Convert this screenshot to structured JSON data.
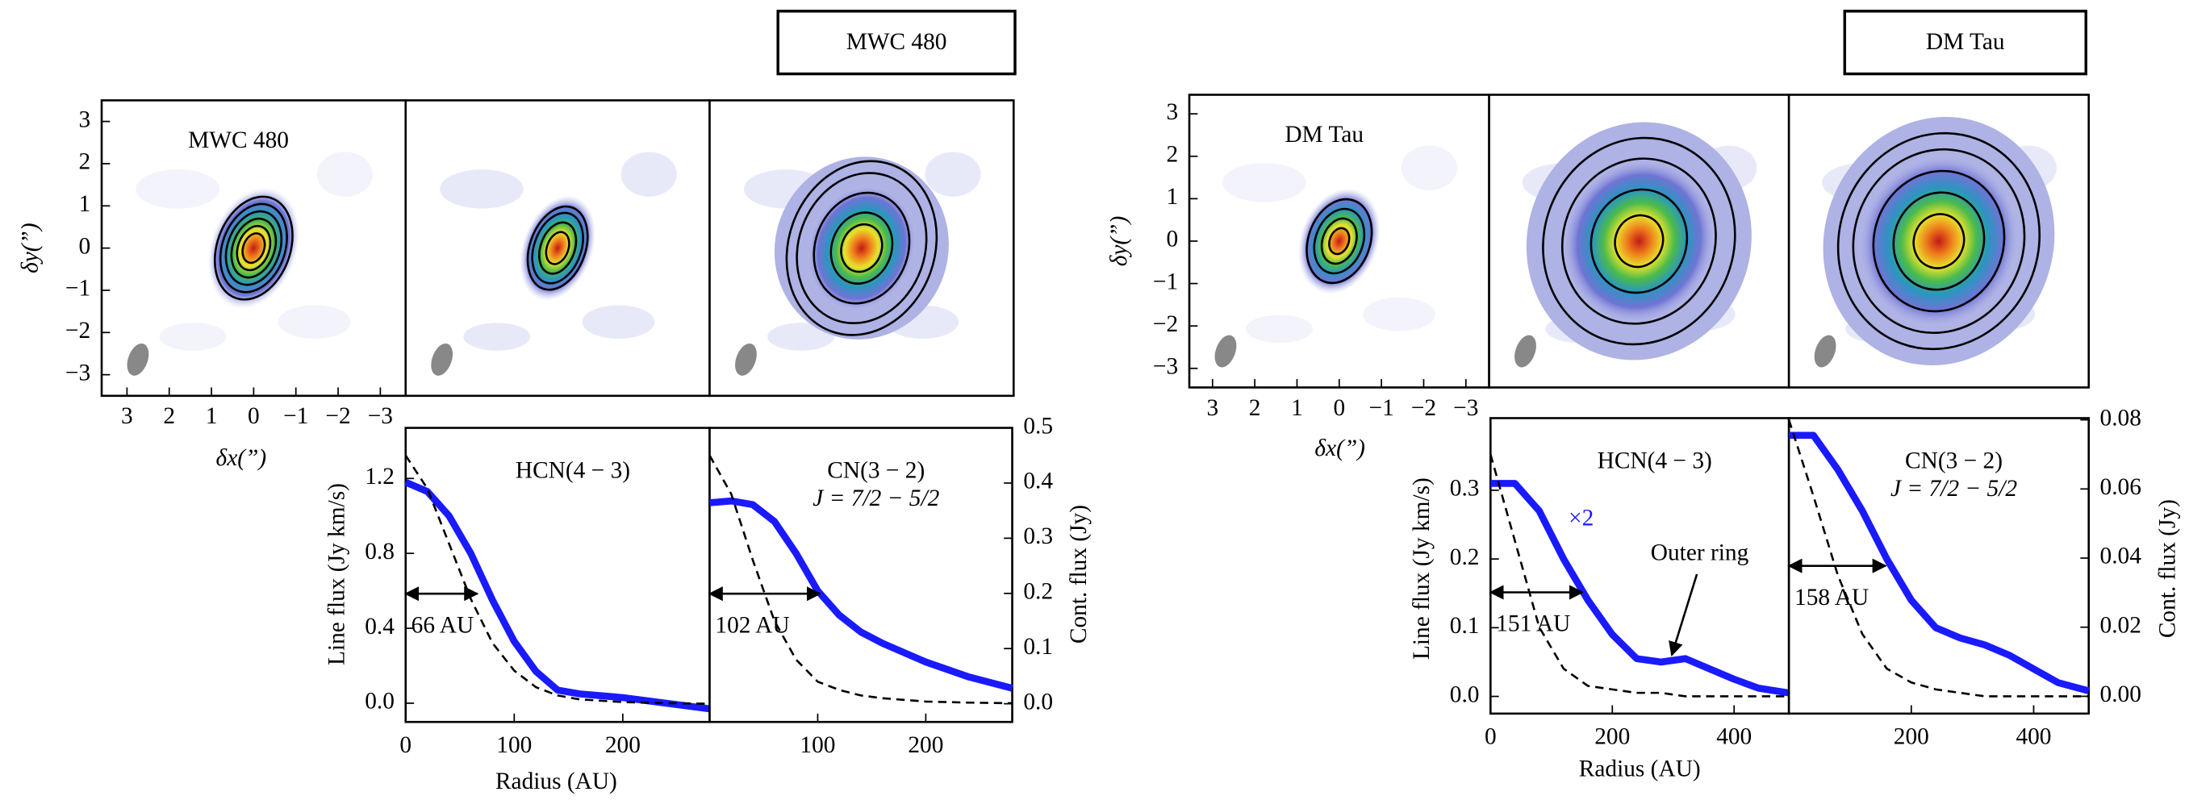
{
  "chart_data": [
    {
      "type": "map",
      "heading": "MWC 480",
      "label": "MWC 480",
      "xlabel": "δx(”)",
      "ylabel": "δy(”)",
      "xlim": [
        3.6,
        -3.6
      ],
      "ylim": [
        -3.5,
        3.5
      ],
      "xticks": [
        3,
        2,
        1,
        0,
        {
          "value": -1,
          "label": "−1"
        },
        {
          "value": -2,
          "label": "−2"
        },
        {
          "value": -3,
          "label": "−3"
        }
      ],
      "yticks": [
        3,
        2,
        1,
        0,
        {
          "value": -1,
          "label": "−1"
        },
        {
          "value": -2,
          "label": "−2"
        },
        {
          "value": -3,
          "label": "−3"
        }
      ]
    },
    {
      "type": "line",
      "title": "HCN(4 − 3)",
      "xlabel": "Radius (AU)",
      "ylabel": "Line flux (Jy km/s)",
      "xlim": [
        0,
        280
      ],
      "ylim": [
        -0.1,
        1.47
      ],
      "y2lim": [
        -0.033,
        0.5
      ],
      "xticks": [
        0,
        100,
        200
      ],
      "yticks": [
        {
          "value": 0,
          "label": "0.0"
        },
        0.4,
        0.8,
        1.2
      ],
      "x": [
        0,
        20,
        40,
        60,
        80,
        100,
        120,
        140,
        160,
        200,
        240,
        280
      ],
      "series": [
        {
          "color": "#1a1aff",
          "values": [
            1.18,
            1.13,
            1.0,
            0.8,
            0.55,
            0.33,
            0.17,
            0.07,
            0.05,
            0.03,
            0.0,
            -0.03
          ]
        },
        {
          "color": "#000000",
          "axis": "y2",
          "dashed": true,
          "values": [
            0.45,
            0.39,
            0.29,
            0.19,
            0.11,
            0.06,
            0.03,
            0.015,
            0.008,
            0.003,
            0.001,
            0
          ]
        }
      ],
      "arrow": {
        "value": 66,
        "label": "66 AU"
      }
    },
    {
      "type": "line",
      "title": "CN(3 − 2)",
      "subtitle": "J = 7/2 − 5/2",
      "y2label": "Cont. flux (Jy)",
      "xlim": [
        0,
        280
      ],
      "ylim": [
        -0.1,
        1.47
      ],
      "y2lim": [
        -0.033,
        0.5
      ],
      "xticks": [
        100,
        200
      ],
      "y2ticks": [
        {
          "value": 0,
          "label": "0.0"
        },
        0.1,
        0.2,
        0.3,
        0.4,
        0.5
      ],
      "x": [
        0,
        20,
        40,
        60,
        80,
        100,
        120,
        140,
        160,
        200,
        240,
        280
      ],
      "series": [
        {
          "color": "#1a1aff",
          "values": [
            1.07,
            1.08,
            1.06,
            0.97,
            0.8,
            0.6,
            0.47,
            0.38,
            0.32,
            0.22,
            0.14,
            0.08
          ]
        },
        {
          "color": "#000000",
          "axis": "y2",
          "dashed": true,
          "values": [
            0.45,
            0.38,
            0.26,
            0.15,
            0.08,
            0.04,
            0.025,
            0.015,
            0.01,
            0.004,
            0.002,
            0.001
          ]
        }
      ],
      "arrow": {
        "value": 102,
        "label": "102 AU"
      }
    },
    {
      "type": "map",
      "heading": "DM Tau",
      "label": "DM Tau",
      "xlabel": "δx(”)",
      "ylabel": "δy(”)",
      "xlim": [
        3.55,
        -3.55
      ],
      "ylim": [
        -3.45,
        3.45
      ],
      "xticks": [
        3,
        2,
        1,
        0,
        {
          "value": -1,
          "label": "−1"
        },
        {
          "value": -2,
          "label": "−2"
        },
        {
          "value": -3,
          "label": "−3"
        }
      ],
      "yticks": [
        3,
        2,
        1,
        0,
        {
          "value": -1,
          "label": "−1"
        },
        {
          "value": -2,
          "label": "−2"
        },
        {
          "value": -3,
          "label": "−3"
        }
      ]
    },
    {
      "type": "line",
      "title": "HCN(4 − 3)",
      "xlabel": "Radius (AU)",
      "ylabel": "Line flux (Jy km/s)",
      "xlim": [
        0,
        490
      ],
      "ylim": [
        -0.025,
        0.405
      ],
      "y2lim": [
        -0.005,
        0.0805
      ],
      "xticks": [
        0,
        200,
        400
      ],
      "yticks": [
        {
          "value": 0,
          "label": "0.0"
        },
        0.1,
        0.2,
        0.3
      ],
      "x": [
        0,
        40,
        80,
        120,
        160,
        200,
        240,
        280,
        320,
        360,
        400,
        440,
        490
      ],
      "series": [
        {
          "color": "#1a1aff",
          "values": [
            0.31,
            0.31,
            0.27,
            0.2,
            0.14,
            0.09,
            0.055,
            0.05,
            0.055,
            0.04,
            0.025,
            0.012,
            0.005
          ]
        },
        {
          "color": "#000000",
          "axis": "y2",
          "dashed": true,
          "values": [
            0.07,
            0.045,
            0.02,
            0.008,
            0.003,
            0.002,
            0.001,
            0.001,
            0,
            0,
            0,
            0,
            0
          ]
        }
      ],
      "arrow": {
        "value": 151,
        "label": "151 AU"
      },
      "scale_note": "×2",
      "feature_note": "Outer ring"
    },
    {
      "type": "line",
      "title": "CN(3 − 2)",
      "subtitle": "J = 7/2 − 5/2",
      "y2label": "Cont. flux (Jy)",
      "xlim": [
        0,
        490
      ],
      "ylim": [
        -0.025,
        0.405
      ],
      "y2lim": [
        -0.005,
        0.0805
      ],
      "xticks": [
        200,
        400
      ],
      "y2ticks": [
        {
          "value": 0,
          "label": "0.00"
        },
        0.02,
        0.04,
        0.06,
        0.08
      ],
      "x": [
        0,
        40,
        80,
        120,
        160,
        200,
        240,
        280,
        320,
        360,
        400,
        440,
        490
      ],
      "series": [
        {
          "color": "#1a1aff",
          "values": [
            0.38,
            0.38,
            0.33,
            0.27,
            0.2,
            0.14,
            0.1,
            0.085,
            0.075,
            0.06,
            0.04,
            0.02,
            0.008
          ]
        },
        {
          "color": "#000000",
          "axis": "y2",
          "dashed": true,
          "values": [
            0.08,
            0.058,
            0.035,
            0.018,
            0.008,
            0.004,
            0.002,
            0.001,
            0,
            0,
            0,
            0,
            0
          ]
        }
      ],
      "arrow": {
        "value": 158,
        "label": "158 AU"
      }
    }
  ]
}
